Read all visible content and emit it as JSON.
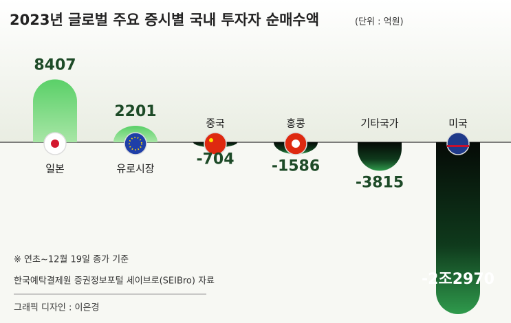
{
  "chart_data": {
    "type": "bar",
    "title": "2023년 글로벌 주요 증시별 국내 투자자 순매수액",
    "subtitle": "(단위 : 억원)",
    "categories": [
      "일본",
      "유로시장",
      "중국",
      "홍콩",
      "기타국가",
      "미국"
    ],
    "values": [
      8407,
      2201,
      -704,
      -1586,
      -3815,
      -22970
    ],
    "value_labels": [
      "8407",
      "2201",
      "-704",
      "-1586",
      "-3815",
      "-2조2970"
    ],
    "color": "#3cb55a",
    "notes": [
      "※ 연초~12월 19일 종가 기준",
      "한국예탁결제원 증권정보포털 세이브로(SEIBro) 자료",
      "그래픽 디자인 : 이은경"
    ]
  }
}
